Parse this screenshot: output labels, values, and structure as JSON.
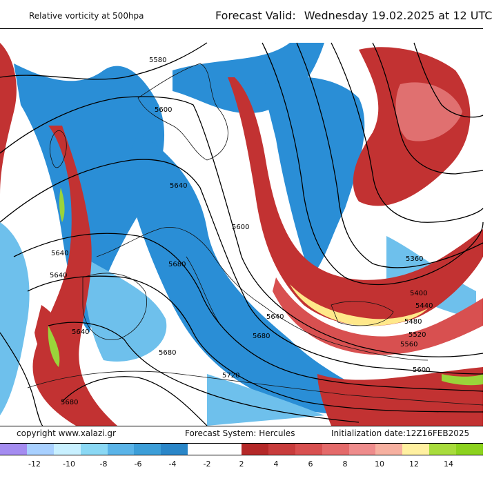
{
  "header": {
    "left_title": "Relative vorticity at 500hpa",
    "valid_label": "Forecast Valid:",
    "valid_value": "Wednesday 19.02.2025 at 12 UTC"
  },
  "footer": {
    "copyright": "copyright www.xalazi.gr",
    "system": "Forecast System: Hercules",
    "init": "Initialization date:12Z16FEB2025"
  },
  "legend": {
    "colors": [
      "#a48cf0",
      "#a8d0ff",
      "#c8f0ff",
      "#8ad8f4",
      "#5ab4e8",
      "#3c9ed8",
      "#2a86c8",
      "#ffffff",
      "#ffffff",
      "#b42828",
      "#c83c3c",
      "#d85050",
      "#e46a6a",
      "#ee8c8c",
      "#f6b0a0",
      "#fff0a0",
      "#a8dc3c",
      "#8cd21e"
    ],
    "ticks": [
      "-12",
      "-10",
      "-8",
      "-6",
      "-4",
      "-2",
      "2",
      "4",
      "6",
      "8",
      "10",
      "12",
      "14"
    ]
  },
  "map": {
    "contour_labels": [
      "5580",
      "5600",
      "5640",
      "5600",
      "5680",
      "5640",
      "5640",
      "5640",
      "5680",
      "5680",
      "5640",
      "5680",
      "5720",
      "5360",
      "5400",
      "5440",
      "5480",
      "5520",
      "5560",
      "5600"
    ],
    "colors": {
      "neg": "#2a8ed6",
      "neg_light": "#6ec0ec",
      "pos": "#c23232",
      "pos_light": "#e07070",
      "yellow": "#ffe88a",
      "green": "#9ad43a"
    }
  }
}
